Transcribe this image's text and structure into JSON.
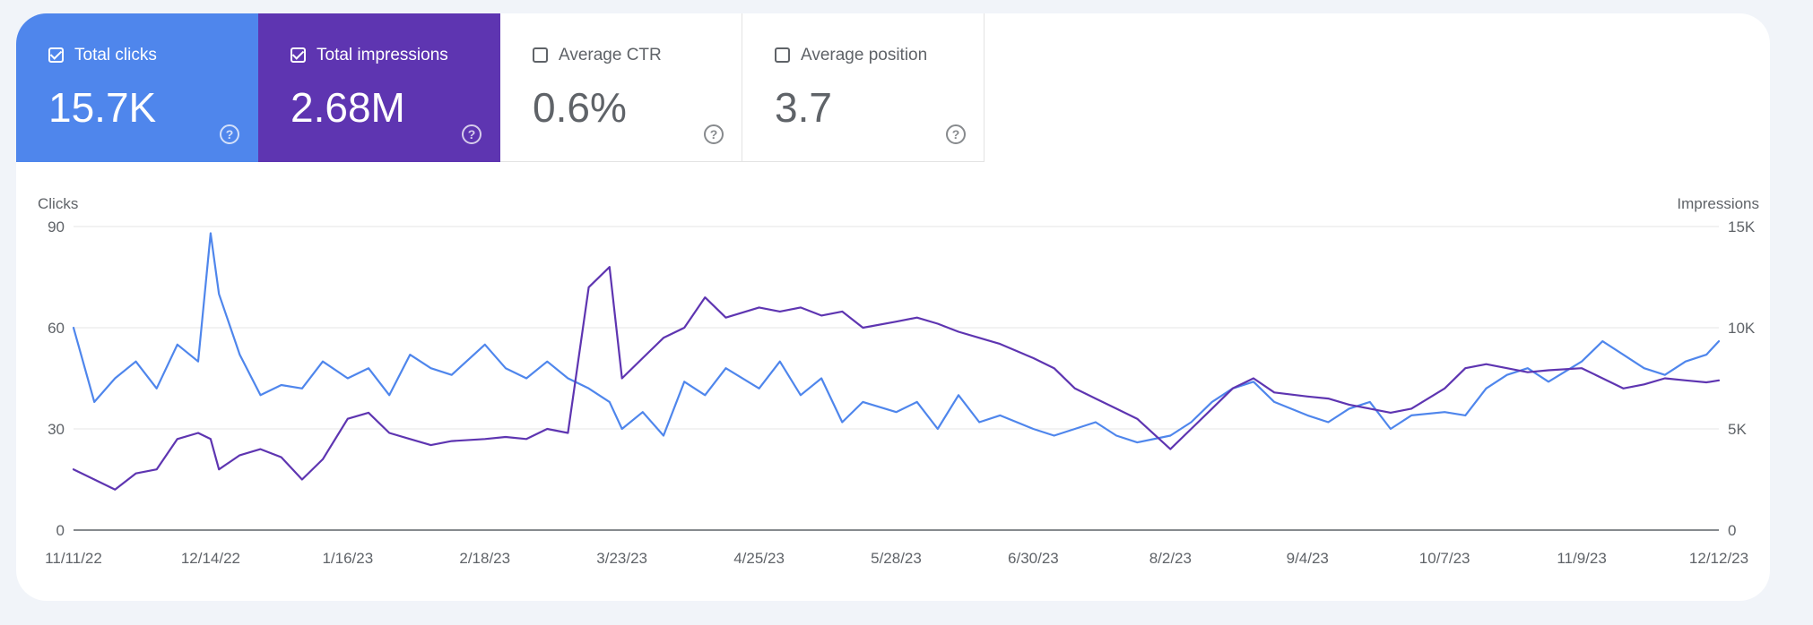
{
  "metrics": [
    {
      "label": "Total clicks",
      "value": "15.7K",
      "checked": true,
      "color": "#4f86ec",
      "icon": "help-icon"
    },
    {
      "label": "Total impressions",
      "value": "2.68M",
      "checked": true,
      "color": "#5e35b1",
      "icon": "help-icon"
    },
    {
      "label": "Average CTR",
      "value": "0.6%",
      "checked": false,
      "color": "#ffffff",
      "icon": "help-icon"
    },
    {
      "label": "Average position",
      "value": "3.7",
      "checked": false,
      "color": "#ffffff",
      "icon": "help-icon"
    }
  ],
  "chart_data": {
    "type": "line",
    "xlabel": "",
    "ylabel": "Clicks",
    "y2label": "Impressions",
    "ylim": [
      0,
      90
    ],
    "y2lim": [
      0,
      15000
    ],
    "yticks": [
      "0",
      "30",
      "60",
      "90"
    ],
    "y2ticks": [
      "0",
      "5K",
      "10K",
      "15K"
    ],
    "xticks": [
      "11/11/22",
      "12/14/22",
      "1/16/23",
      "2/18/23",
      "3/23/23",
      "4/25/23",
      "5/28/23",
      "6/30/23",
      "8/2/23",
      "9/4/23",
      "10/7/23",
      "11/9/23",
      "12/12/23"
    ],
    "grid": true,
    "legend": "none",
    "series": [
      {
        "axis": "left",
        "color": "#4f86ec",
        "x": [
          "11/11/22",
          "11/16/22",
          "11/21/22",
          "11/26/22",
          "12/1/22",
          "12/6/22",
          "12/11/22",
          "12/14/22",
          "12/16/22",
          "12/21/22",
          "12/26/22",
          "12/31/22",
          "1/5/23",
          "1/10/23",
          "1/16/23",
          "1/21/23",
          "1/26/23",
          "1/31/23",
          "2/5/23",
          "2/10/23",
          "2/18/23",
          "2/23/23",
          "2/28/23",
          "3/5/23",
          "3/10/23",
          "3/15/23",
          "3/20/23",
          "3/23/23",
          "3/28/23",
          "4/2/23",
          "4/7/23",
          "4/12/23",
          "4/17/23",
          "4/25/23",
          "4/30/23",
          "5/5/23",
          "5/10/23",
          "5/15/23",
          "5/20/23",
          "5/28/23",
          "6/2/23",
          "6/7/23",
          "6/12/23",
          "6/17/23",
          "6/22/23",
          "6/30/23",
          "7/5/23",
          "7/10/23",
          "7/15/23",
          "7/20/23",
          "7/25/23",
          "8/2/23",
          "8/7/23",
          "8/12/23",
          "8/17/23",
          "8/22/23",
          "8/27/23",
          "9/4/23",
          "9/9/23",
          "9/14/23",
          "9/19/23",
          "9/24/23",
          "9/29/23",
          "10/7/23",
          "10/12/23",
          "10/17/23",
          "10/22/23",
          "10/27/23",
          "11/1/23",
          "11/9/23",
          "11/14/23",
          "11/19/23",
          "11/24/23",
          "11/29/23",
          "12/4/23",
          "12/9/23",
          "12/12/23"
        ],
        "values": [
          60,
          38,
          45,
          50,
          42,
          55,
          50,
          88,
          70,
          52,
          40,
          43,
          42,
          50,
          45,
          48,
          40,
          52,
          48,
          46,
          55,
          48,
          45,
          50,
          45,
          42,
          38,
          30,
          35,
          28,
          44,
          40,
          48,
          42,
          50,
          40,
          45,
          32,
          38,
          35,
          38,
          30,
          40,
          32,
          34,
          30,
          28,
          30,
          32,
          28,
          26,
          28,
          32,
          38,
          42,
          44,
          38,
          34,
          32,
          36,
          38,
          30,
          34,
          35,
          34,
          42,
          46,
          48,
          44,
          50,
          56,
          52,
          48,
          46,
          50,
          52,
          56
        ]
      },
      {
        "axis": "right",
        "color": "#5e35b1",
        "x": [
          "11/11/22",
          "11/16/22",
          "11/21/22",
          "11/26/22",
          "12/1/22",
          "12/6/22",
          "12/11/22",
          "12/14/22",
          "12/16/22",
          "12/21/22",
          "12/26/22",
          "12/31/22",
          "1/5/23",
          "1/10/23",
          "1/16/23",
          "1/21/23",
          "1/26/23",
          "1/31/23",
          "2/5/23",
          "2/10/23",
          "2/18/23",
          "2/23/23",
          "2/28/23",
          "3/5/23",
          "3/10/23",
          "3/15/23",
          "3/20/23",
          "3/23/23",
          "3/28/23",
          "4/2/23",
          "4/7/23",
          "4/12/23",
          "4/17/23",
          "4/25/23",
          "4/30/23",
          "5/5/23",
          "5/10/23",
          "5/15/23",
          "5/20/23",
          "5/28/23",
          "6/2/23",
          "6/7/23",
          "6/12/23",
          "6/17/23",
          "6/22/23",
          "6/30/23",
          "7/5/23",
          "7/10/23",
          "7/15/23",
          "7/20/23",
          "7/25/23",
          "8/2/23",
          "8/7/23",
          "8/12/23",
          "8/17/23",
          "8/22/23",
          "8/27/23",
          "9/4/23",
          "9/9/23",
          "9/14/23",
          "9/19/23",
          "9/24/23",
          "9/29/23",
          "10/7/23",
          "10/12/23",
          "10/17/23",
          "10/22/23",
          "10/27/23",
          "11/1/23",
          "11/9/23",
          "11/14/23",
          "11/19/23",
          "11/24/23",
          "11/29/23",
          "12/4/23",
          "12/9/23",
          "12/12/23"
        ],
        "values": [
          3000,
          2500,
          2000,
          2800,
          3000,
          4500,
          4800,
          4500,
          3000,
          3700,
          4000,
          3600,
          2500,
          3500,
          5500,
          5800,
          4800,
          4500,
          4200,
          4400,
          4500,
          4600,
          4500,
          5000,
          4800,
          12000,
          13000,
          7500,
          8500,
          9500,
          10000,
          11500,
          10500,
          11000,
          10800,
          11000,
          10600,
          10800,
          10000,
          10300,
          10500,
          10200,
          9800,
          9500,
          9200,
          8500,
          8000,
          7000,
          6500,
          6000,
          5500,
          4000,
          5000,
          6000,
          7000,
          7500,
          6800,
          6600,
          6500,
          6200,
          6000,
          5800,
          6000,
          7000,
          8000,
          8200,
          8000,
          7800,
          7900,
          8000,
          7500,
          7000,
          7200,
          7500,
          7400,
          7300,
          7400
        ]
      }
    ]
  }
}
